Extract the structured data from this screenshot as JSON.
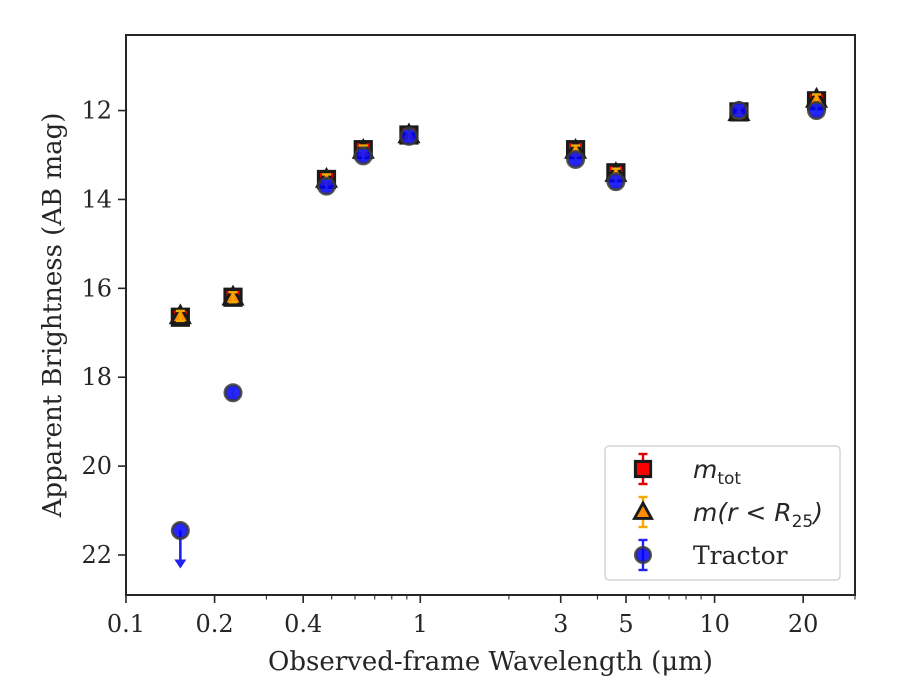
{
  "chart_data": {
    "type": "scatter",
    "xlabel": "Observed-frame Wavelength (μm)",
    "ylabel": "Apparent Brightness (AB mag)",
    "xscale": "log",
    "xlim": [
      0.1,
      30
    ],
    "ylim": [
      22.9,
      10.3
    ],
    "y_inverted": true,
    "grid": false,
    "legend_placement": "lower-right",
    "x_ticks": [
      {
        "value": 0.1,
        "label": "0.1"
      },
      {
        "value": 0.2,
        "label": "0.2"
      },
      {
        "value": 0.4,
        "label": "0.4"
      },
      {
        "value": 1,
        "label": "1"
      },
      {
        "value": 3,
        "label": "3"
      },
      {
        "value": 5,
        "label": "5"
      },
      {
        "value": 10,
        "label": "10"
      },
      {
        "value": 20,
        "label": "20"
      }
    ],
    "y_ticks": [
      12,
      14,
      16,
      18,
      20,
      22
    ],
    "series": [
      {
        "name": "m_tot",
        "legend_parts": [
          "m",
          "tot"
        ],
        "marker": "square",
        "color": "#ff0000",
        "edge_color": "#1a1a1a",
        "error_color": "#e00000",
        "x": [
          0.153,
          0.231,
          0.48,
          0.64,
          0.915,
          3.37,
          4.62,
          12.1,
          22.2
        ],
        "y": [
          16.65,
          16.2,
          13.55,
          12.88,
          12.55,
          12.88,
          13.4,
          12.03,
          11.78
        ]
      },
      {
        "name": "m(r < R_25)",
        "legend_parts": [
          "m(r < R",
          "25",
          ")"
        ],
        "marker": "triangle",
        "color": "#ff8c00",
        "edge_color": "#1a1a1a",
        "error_color": "#f5a800",
        "x": [
          0.153,
          0.231,
          0.48,
          0.64,
          0.915,
          3.37,
          4.62,
          12.1,
          22.2
        ],
        "y": [
          16.62,
          16.2,
          13.55,
          12.9,
          12.55,
          12.9,
          13.42,
          12.05,
          11.75
        ]
      },
      {
        "name": "Tractor",
        "legend_parts": [
          "Tractor"
        ],
        "marker": "circle",
        "color": "#0000ff",
        "edge_color": "#3a3a3a",
        "error_color": "#2222ee",
        "x": [
          0.153,
          0.231,
          0.48,
          0.64,
          0.915,
          3.37,
          4.62,
          12.1,
          22.2
        ],
        "y": [
          21.45,
          18.35,
          13.7,
          13.02,
          12.58,
          13.1,
          13.6,
          12.0,
          12.0
        ],
        "upper_limit": [
          true,
          false,
          false,
          false,
          false,
          false,
          false,
          false,
          false
        ]
      }
    ]
  }
}
